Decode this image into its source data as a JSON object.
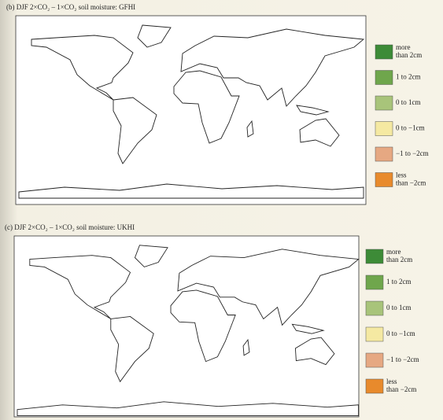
{
  "panels": [
    {
      "title": "(b) DJF 2×CO₂ – 1×CO₂ soil moisture: GFHI",
      "legend": [
        {
          "label": [
            "more",
            "than 2cm"
          ],
          "color": "#3d8b37"
        },
        {
          "label": [
            "1 to 2cm"
          ],
          "color": "#6fa64c"
        },
        {
          "label": [
            "0 to 1cm"
          ],
          "color": "#a8c47a"
        },
        {
          "label": [
            "0 to −1cm"
          ],
          "color": "#f5e9a2"
        },
        {
          "label": [
            "−1 to −2cm"
          ],
          "color": "#e6a882"
        },
        {
          "label": [
            "less",
            "than −2cm"
          ],
          "color": "#e88a2c"
        }
      ]
    },
    {
      "title": "(c) DJF 2×CO₂ – 1×CO₂ soil moisture: UKHI",
      "legend": [
        {
          "label": [
            "more",
            "than 2cm"
          ],
          "color": "#3d8b37"
        },
        {
          "label": [
            "1 to 2cm"
          ],
          "color": "#6fa64c"
        },
        {
          "label": [
            "0 to 1cm"
          ],
          "color": "#a8c47a"
        },
        {
          "label": [
            "0 to −1cm"
          ],
          "color": "#f5e9a2"
        },
        {
          "label": [
            "−1 to −2cm"
          ],
          "color": "#e6a882"
        },
        {
          "label": [
            "less",
            "than −2cm"
          ],
          "color": "#e88a2c"
        }
      ]
    }
  ]
}
